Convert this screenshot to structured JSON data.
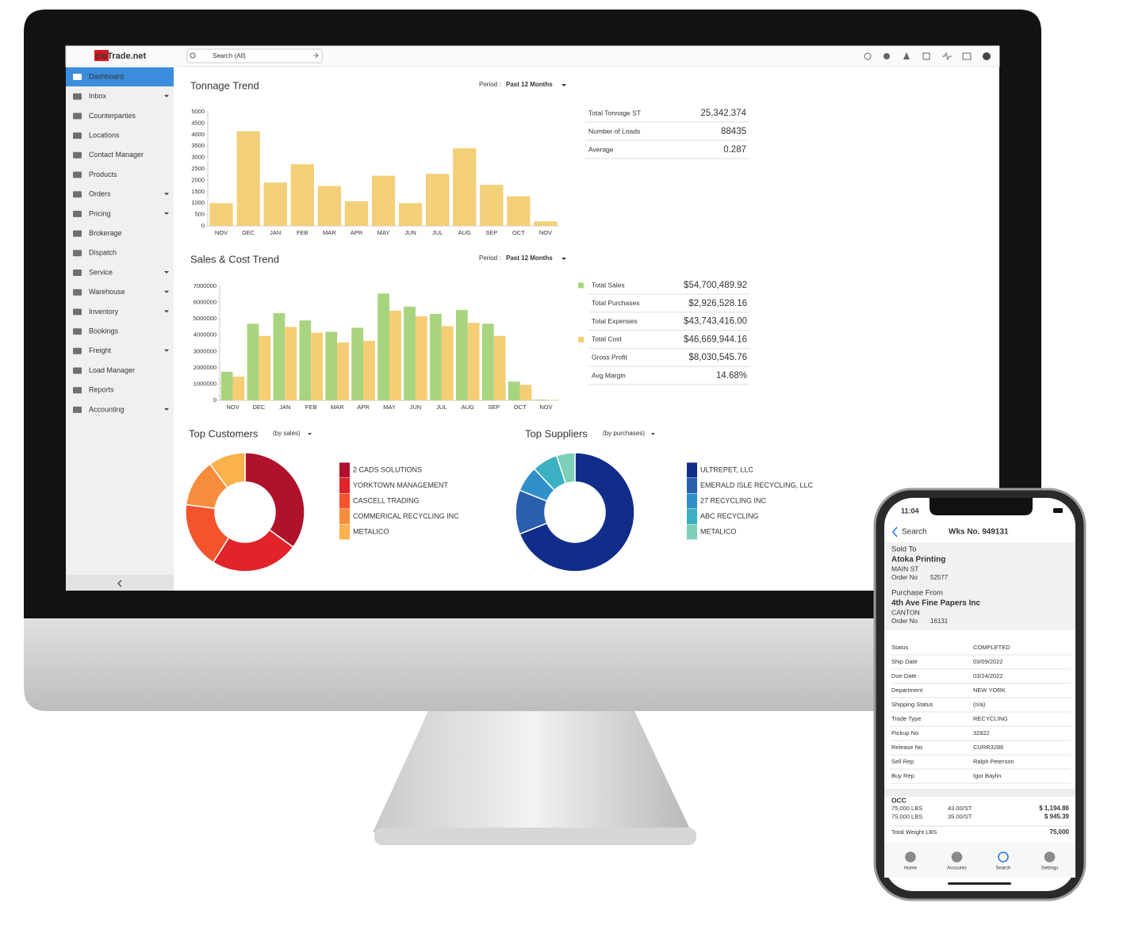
{
  "app": {
    "logo": "cieTrade.net",
    "search_placeholder": "Search (All)",
    "sidebar": [
      {
        "label": "Dashboard",
        "active": true
      },
      {
        "label": "Inbox",
        "dropdown": true
      },
      {
        "label": "Counterparties"
      },
      {
        "label": "Locations"
      },
      {
        "label": "Contact Manager"
      },
      {
        "label": "Products"
      },
      {
        "label": "Orders",
        "dropdown": true
      },
      {
        "label": "Pricing",
        "dropdown": true
      },
      {
        "label": "Brokerage"
      },
      {
        "label": "Dispatch"
      },
      {
        "label": "Service",
        "dropdown": true
      },
      {
        "label": "Warehouse",
        "dropdown": true
      },
      {
        "label": "Inventory",
        "dropdown": true
      },
      {
        "label": "Bookings"
      },
      {
        "label": "Freight",
        "dropdown": true
      },
      {
        "label": "Load Manager"
      },
      {
        "label": "Reports"
      },
      {
        "label": "Accounting",
        "dropdown": true
      }
    ]
  },
  "chart_data": [
    {
      "type": "bar",
      "title": "Tonnage Trend",
      "period_label": "Period :",
      "period": "Past 12 Months",
      "categories": [
        "NOV",
        "DEC",
        "JAN",
        "FEB",
        "MAR",
        "APR",
        "MAY",
        "JUN",
        "JUL",
        "AUG",
        "SEP",
        "OCT",
        "NOV"
      ],
      "values": [
        1000,
        4150,
        1900,
        2700,
        1750,
        1080,
        2200,
        1000,
        2280,
        3400,
        1800,
        1300,
        200
      ],
      "color": "#f3cf7a",
      "ylim": [
        0,
        5000
      ],
      "yticks": [
        0,
        500,
        1000,
        1500,
        2000,
        2500,
        3000,
        3500,
        4000,
        4500,
        5000
      ],
      "grid": false,
      "stats": [
        {
          "label": "Total Tonnage ST",
          "value": "25,342.374"
        },
        {
          "label": "Number of Loads",
          "value": "88435"
        },
        {
          "label": "Average",
          "value": "0.287"
        }
      ]
    },
    {
      "type": "grouped-bar",
      "title": "Sales & Cost Trend",
      "period_label": "Period :",
      "period": "Past 12 Months",
      "categories": [
        "NOV",
        "DEC",
        "JAN",
        "FEB",
        "MAR",
        "APR",
        "MAY",
        "JUN",
        "JUL",
        "AUG",
        "SEP",
        "OCT",
        "NOV"
      ],
      "series": [
        {
          "name": "Total Sales",
          "color": "#a9d47f",
          "total": "$54,700,489.92",
          "values": [
            1750000,
            4700000,
            5350000,
            4900000,
            4200000,
            4450000,
            6550000,
            5750000,
            5300000,
            5550000,
            4700000,
            1150000,
            50000
          ]
        },
        {
          "name": "Total Cost",
          "color": "#f5cd74",
          "total": "$46,669,944.16",
          "values": [
            1450000,
            3950000,
            4500000,
            4150000,
            3550000,
            3650000,
            5500000,
            5150000,
            4550000,
            4750000,
            3950000,
            950000,
            30000
          ]
        }
      ],
      "ylim": [
        0,
        7000000
      ],
      "yticks": [
        0,
        1000000,
        2000000,
        3000000,
        4000000,
        5000000,
        6000000,
        7000000
      ],
      "grid": false,
      "stats": [
        {
          "label": "Total Purchases",
          "value": "$2,926,528.16"
        },
        {
          "label": "Total Expenses",
          "value": "$43,743,416.00"
        },
        {
          "label": "Gross Profit",
          "value": "$8,030,545.76",
          "color": "#1e9a2c"
        },
        {
          "label": "Avg Margin",
          "value": "14.68%"
        }
      ]
    },
    {
      "type": "pie",
      "title": "Top Customers",
      "subtitle": "(by sales)",
      "donut": true,
      "categories": [
        "2 CADS SOLUTIONS",
        "YORKTOWN MANAGEMENT",
        "CASCELL TRADING",
        "COMMERICAL RECYCLING INC",
        "METALICO"
      ],
      "values": [
        35,
        24,
        18,
        13,
        10
      ],
      "colors": [
        "#b0122b",
        "#e0242a",
        "#f4532c",
        "#f88c3d",
        "#fbb24c"
      ]
    },
    {
      "type": "pie",
      "title": "Top Suppliers",
      "subtitle": "(by purchases)",
      "donut": true,
      "categories": [
        "ULTREPET, LLC",
        "EMERALD ISLE RECYCLING, LLC",
        "27 RECYCLING INC",
        "ABC RECYCLING",
        "METALICO"
      ],
      "values": [
        69,
        12,
        7,
        7,
        5
      ],
      "colors": [
        "#102d8a",
        "#2b5fad",
        "#2f8fc9",
        "#3bb0c0",
        "#7ccfb8"
      ]
    }
  ],
  "phone": {
    "time": "11:04",
    "back": "Search",
    "title": "Wks No. 949131",
    "parties": [
      {
        "heading": "Sold To",
        "heading_color": "#e02020",
        "name": "Atoka Printing",
        "address": "MAIN ST",
        "order_label": "Order No",
        "order_no": "52577"
      },
      {
        "heading": "Purchase From",
        "heading_color": "#1b2fa8",
        "name": "4th Ave Fine Papers Inc",
        "address": "CANTON",
        "order_label": "Order No",
        "order_no": "16131"
      }
    ],
    "details": [
      [
        "Status",
        "COMPLETED"
      ],
      [
        "Ship Date",
        "03/09/2022"
      ],
      [
        "Due Date",
        "03/24/2022"
      ],
      [
        "Department",
        "NEW YORK"
      ],
      [
        "Shipping Status",
        "(n/a)"
      ],
      [
        "Trade Type",
        "RECYCLING"
      ],
      [
        "Pickup No",
        "32822"
      ],
      [
        "Release No",
        "CURR3286"
      ],
      [
        "Sell Rep",
        "Ralph Peterson"
      ],
      [
        "Buy Rep",
        "Igor Baylin"
      ]
    ],
    "item": {
      "name": "OCC",
      "lines": [
        {
          "weight": "75,000 LBS",
          "price": "43.00/ST",
          "amount": "$ 1,194.86",
          "color": "#e02020"
        },
        {
          "weight": "75,000 LBS",
          "price": "35.00/ST",
          "amount": "$ 945.39",
          "color": "#1b2fa8"
        }
      ],
      "total_label": "Total Weight LBS",
      "total": "75,000"
    },
    "tabs": [
      {
        "label": "Home"
      },
      {
        "label": "Accounts"
      },
      {
        "label": "Search",
        "active": true
      },
      {
        "label": "Settings"
      }
    ]
  }
}
